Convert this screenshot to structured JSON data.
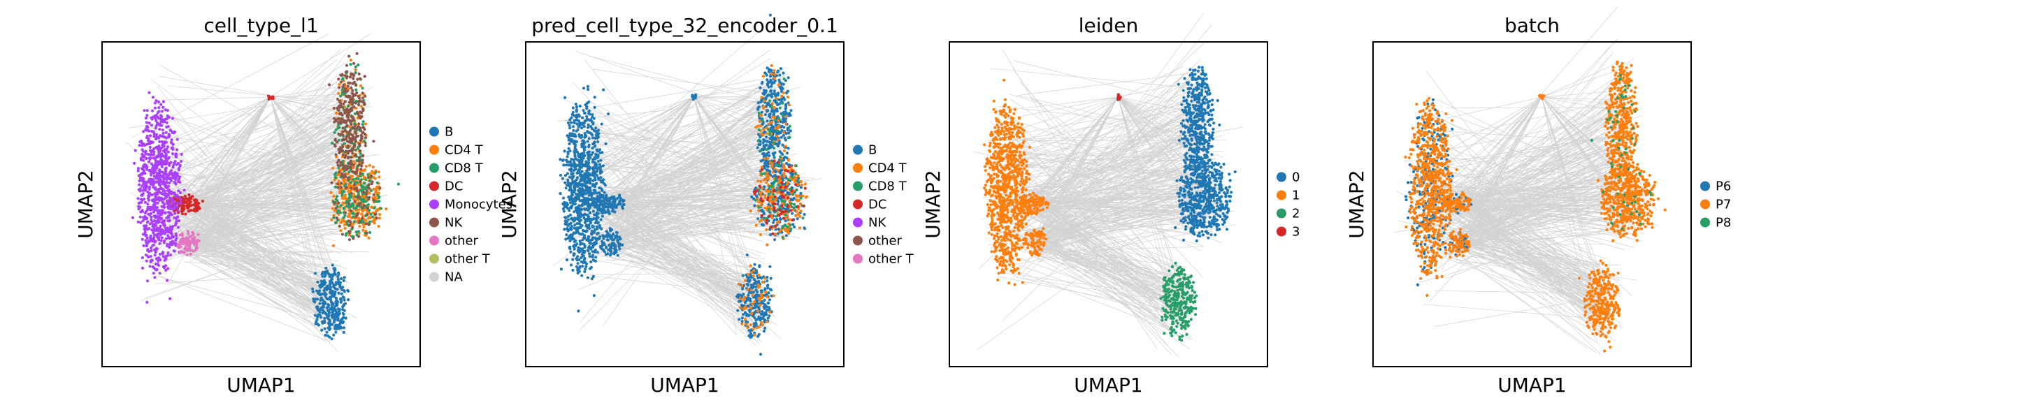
{
  "chart_data": [
    {
      "type": "scatter",
      "subtype": "umap-embedding-with-paga-graph",
      "title": "cell_type_l1",
      "xlabel": "UMAP1",
      "ylabel": "UMAP2",
      "legend": [
        {
          "label": "B",
          "color": "#1f77b4"
        },
        {
          "label": "CD4 T",
          "color": "#ff7f0e"
        },
        {
          "label": "CD8 T",
          "color": "#279e68"
        },
        {
          "label": "DC",
          "color": "#d62728"
        },
        {
          "label": "Monocytes",
          "color": "#aa40fc"
        },
        {
          "label": "NK",
          "color": "#8c564b"
        },
        {
          "label": "other",
          "color": "#e377c2"
        },
        {
          "label": "other T",
          "color": "#b5bd61"
        },
        {
          "label": "NA",
          "color": "#d3d3d3"
        }
      ],
      "legend_position": "right"
    },
    {
      "type": "scatter",
      "subtype": "umap-embedding-with-paga-graph",
      "title": "pred_cell_type_32_encoder_0.1",
      "xlabel": "UMAP1",
      "ylabel": "UMAP2",
      "legend": [
        {
          "label": "B",
          "color": "#1f77b4"
        },
        {
          "label": "CD4 T",
          "color": "#ff7f0e"
        },
        {
          "label": "CD8 T",
          "color": "#279e68"
        },
        {
          "label": "DC",
          "color": "#d62728"
        },
        {
          "label": "NK",
          "color": "#aa40fc"
        },
        {
          "label": "other",
          "color": "#8c564b"
        },
        {
          "label": "other T",
          "color": "#e377c2"
        }
      ],
      "legend_position": "right"
    },
    {
      "type": "scatter",
      "subtype": "umap-embedding-with-paga-graph",
      "title": "leiden",
      "xlabel": "UMAP1",
      "ylabel": "UMAP2",
      "legend": [
        {
          "label": "0",
          "color": "#1f77b4"
        },
        {
          "label": "1",
          "color": "#ff7f0e"
        },
        {
          "label": "2",
          "color": "#279e68"
        },
        {
          "label": "3",
          "color": "#d62728"
        }
      ],
      "legend_position": "right"
    },
    {
      "type": "scatter",
      "subtype": "umap-embedding-with-paga-graph",
      "title": "batch",
      "xlabel": "UMAP1",
      "ylabel": "UMAP2",
      "legend": [
        {
          "label": "P6",
          "color": "#1f77b4"
        },
        {
          "label": "P7",
          "color": "#ff7f0e"
        },
        {
          "label": "P8",
          "color": "#279e68"
        }
      ],
      "legend_position": "right"
    }
  ]
}
